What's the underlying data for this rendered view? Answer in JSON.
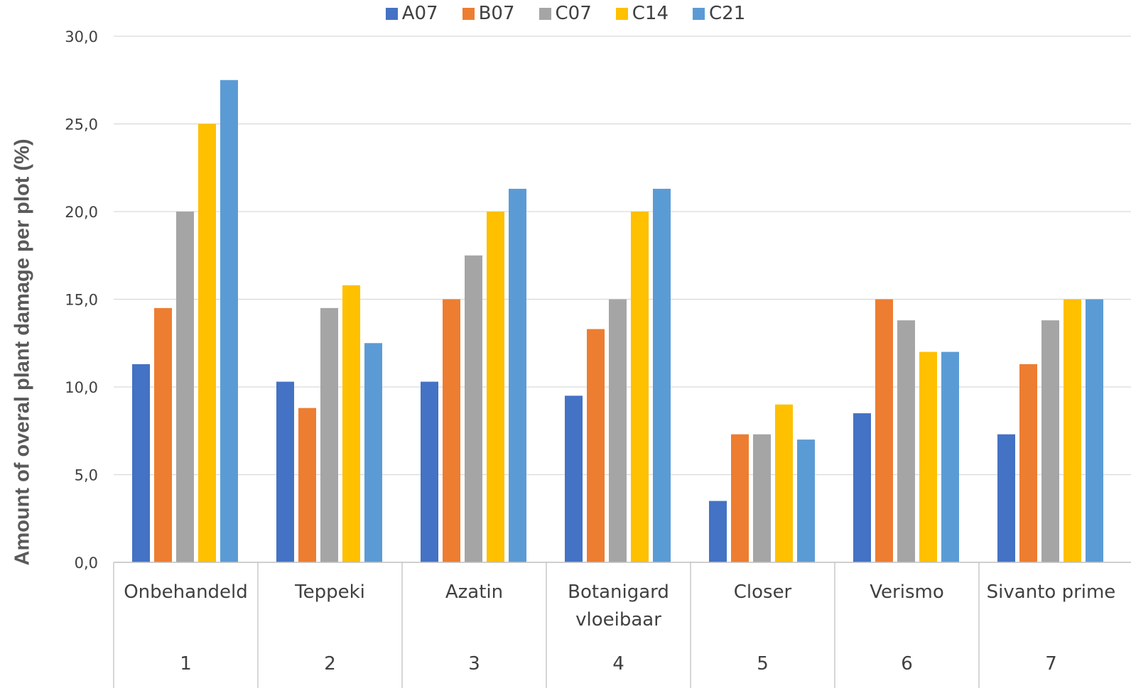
{
  "chart_data": {
    "type": "bar",
    "ylabel": "Amount of overal plant damage per plot (%)",
    "ylim": [
      0,
      30
    ],
    "ytick_step": 5,
    "ytick_labels": [
      "0,0",
      "5,0",
      "10,0",
      "15,0",
      "20,0",
      "25,0",
      "30,0"
    ],
    "grid": true,
    "legend_position": "top-center",
    "categories": [
      {
        "name": [
          "Onbehandeld"
        ],
        "number": "1"
      },
      {
        "name": [
          "Teppeki"
        ],
        "number": "2"
      },
      {
        "name": [
          "Azatin"
        ],
        "number": "3"
      },
      {
        "name": [
          "Botanigard",
          "vloeibaar"
        ],
        "number": "4"
      },
      {
        "name": [
          "Closer"
        ],
        "number": "5"
      },
      {
        "name": [
          "Verismo"
        ],
        "number": "6"
      },
      {
        "name": [
          "Sivanto prime"
        ],
        "number": "7"
      }
    ],
    "series": [
      {
        "name": "A07",
        "color": "#4472C4",
        "values": [
          11.3,
          10.3,
          10.3,
          9.5,
          3.5,
          8.5,
          7.3
        ]
      },
      {
        "name": "B07",
        "color": "#ED7D31",
        "values": [
          14.5,
          8.8,
          15.0,
          13.3,
          7.3,
          15.0,
          11.3
        ]
      },
      {
        "name": "C07",
        "color": "#A5A5A5",
        "values": [
          20.0,
          14.5,
          17.5,
          15.0,
          7.3,
          13.8,
          13.8
        ]
      },
      {
        "name": "C14",
        "color": "#FFC000",
        "values": [
          25.0,
          15.8,
          20.0,
          20.0,
          9.0,
          12.0,
          15.0
        ]
      },
      {
        "name": "C21",
        "color": "#5B9BD5",
        "values": [
          27.5,
          12.5,
          21.3,
          21.3,
          7.0,
          12.0,
          15.0
        ]
      }
    ]
  }
}
